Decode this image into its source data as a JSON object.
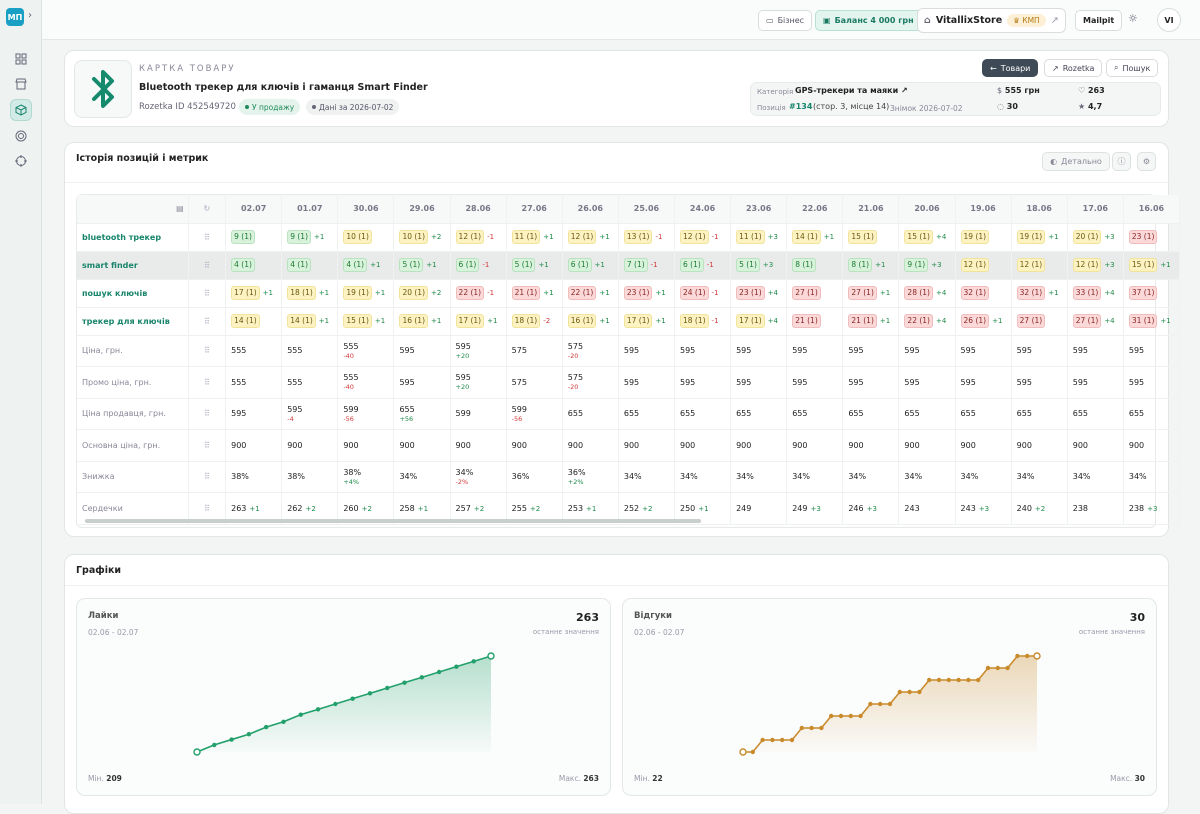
{
  "rail": {
    "logo": "МП",
    "items": [
      "grid-icon",
      "store-icon",
      "box-icon",
      "target-icon",
      "crosshair-icon"
    ]
  },
  "topbar": {
    "business": "Бізнес",
    "balance": "Баланс  4 000 грн",
    "store": "VitallixStore",
    "kmp": "КМП",
    "mailpit": "Mailpit",
    "avatar": "VI"
  },
  "product": {
    "eyebrow": "КАРТКА ТОВАРУ",
    "title": "Bluetooth трекер для ключів і гаманця Smart Finder",
    "rozetka_id": "Rozetka ID 452549720",
    "status": "У продажу",
    "data_date": "Дані за 2026-07-02",
    "btn_products": "Товари",
    "btn_rozetka": "Rozetka",
    "btn_search": "Пошук",
    "category_label": "Категорія",
    "category": "GPS-трекери та маяки",
    "position_label": "Позиція",
    "position": "#134",
    "position_detail": "(стор. 3, місце 14)",
    "snapshot": "Знімок 2026-07-02",
    "price": "555 грн",
    "likes": "263",
    "reviews": "30",
    "rating": "4,7"
  },
  "history": {
    "title": "Історія позицій і метрик",
    "detail_btn": "Детально",
    "dates": [
      "02.07",
      "01.07",
      "30.06",
      "29.06",
      "28.06",
      "27.06",
      "26.06",
      "25.06",
      "24.06",
      "23.06",
      "22.06",
      "21.06",
      "20.06",
      "19.06",
      "18.06",
      "17.06",
      "16.06"
    ],
    "keywords": [
      {
        "label": "bluetooth трекер",
        "cells": [
          [
            "9 (1)",
            "g",
            ""
          ],
          [
            "9 (1)",
            "g",
            "+1"
          ],
          [
            "10 (1)",
            "y",
            ""
          ],
          [
            "10 (1)",
            "y",
            "+2"
          ],
          [
            "12 (1)",
            "y",
            "-1"
          ],
          [
            "11 (1)",
            "y",
            "+1"
          ],
          [
            "12 (1)",
            "y",
            "+1"
          ],
          [
            "13 (1)",
            "y",
            "-1"
          ],
          [
            "12 (1)",
            "y",
            "-1"
          ],
          [
            "11 (1)",
            "y",
            "+3"
          ],
          [
            "14 (1)",
            "y",
            "+1"
          ],
          [
            "15 (1)",
            "y",
            ""
          ],
          [
            "15 (1)",
            "y",
            "+4"
          ],
          [
            "19 (1)",
            "y",
            ""
          ],
          [
            "19 (1)",
            "y",
            "+1"
          ],
          [
            "20 (1)",
            "y",
            "+3"
          ],
          [
            "23 (1)",
            "r",
            ""
          ]
        ]
      },
      {
        "label": "smart finder",
        "cells": [
          [
            "4 (1)",
            "g",
            ""
          ],
          [
            "4 (1)",
            "g",
            ""
          ],
          [
            "4 (1)",
            "g",
            "+1"
          ],
          [
            "5 (1)",
            "g",
            "+1"
          ],
          [
            "6 (1)",
            "g",
            "-1"
          ],
          [
            "5 (1)",
            "g",
            "+1"
          ],
          [
            "6 (1)",
            "g",
            "+1"
          ],
          [
            "7 (1)",
            "g",
            "-1"
          ],
          [
            "6 (1)",
            "g",
            "-1"
          ],
          [
            "5 (1)",
            "g",
            "+3"
          ],
          [
            "8 (1)",
            "g",
            ""
          ],
          [
            "8 (1)",
            "g",
            "+1"
          ],
          [
            "9 (1)",
            "g",
            "+3"
          ],
          [
            "12 (1)",
            "y",
            ""
          ],
          [
            "12 (1)",
            "y",
            ""
          ],
          [
            "12 (1)",
            "y",
            "+3"
          ],
          [
            "15 (1)",
            "y",
            "+1"
          ]
        ]
      },
      {
        "label": "пошук ключів",
        "cells": [
          [
            "17 (1)",
            "y",
            "+1"
          ],
          [
            "18 (1)",
            "y",
            "+1"
          ],
          [
            "19 (1)",
            "y",
            "+1"
          ],
          [
            "20 (1)",
            "y",
            "+2"
          ],
          [
            "22 (1)",
            "r",
            "-1"
          ],
          [
            "21 (1)",
            "r",
            "+1"
          ],
          [
            "22 (1)",
            "r",
            "+1"
          ],
          [
            "23 (1)",
            "r",
            "+1"
          ],
          [
            "24 (1)",
            "r",
            "-1"
          ],
          [
            "23 (1)",
            "r",
            "+4"
          ],
          [
            "27 (1)",
            "r",
            ""
          ],
          [
            "27 (1)",
            "r",
            "+1"
          ],
          [
            "28 (1)",
            "r",
            "+4"
          ],
          [
            "32 (1)",
            "r",
            ""
          ],
          [
            "32 (1)",
            "r",
            "+1"
          ],
          [
            "33 (1)",
            "r",
            "+4"
          ],
          [
            "37 (1)",
            "r",
            ""
          ]
        ]
      },
      {
        "label": "трекер для ключів",
        "cells": [
          [
            "14 (1)",
            "y",
            ""
          ],
          [
            "14 (1)",
            "y",
            "+1"
          ],
          [
            "15 (1)",
            "y",
            "+1"
          ],
          [
            "16 (1)",
            "y",
            "+1"
          ],
          [
            "17 (1)",
            "y",
            "+1"
          ],
          [
            "18 (1)",
            "y",
            "-2"
          ],
          [
            "16 (1)",
            "y",
            "+1"
          ],
          [
            "17 (1)",
            "y",
            "+1"
          ],
          [
            "18 (1)",
            "y",
            "-1"
          ],
          [
            "17 (1)",
            "y",
            "+4"
          ],
          [
            "21 (1)",
            "r",
            ""
          ],
          [
            "21 (1)",
            "r",
            "+1"
          ],
          [
            "22 (1)",
            "r",
            "+4"
          ],
          [
            "26 (1)",
            "r",
            "+1"
          ],
          [
            "27 (1)",
            "r",
            ""
          ],
          [
            "27 (1)",
            "r",
            "+4"
          ],
          [
            "31 (1)",
            "r",
            "+1"
          ]
        ]
      }
    ],
    "metrics": [
      {
        "label": "Ціна, грн.",
        "cells": [
          [
            "555",
            ""
          ],
          [
            "555",
            ""
          ],
          [
            "555",
            "-40"
          ],
          [
            "595",
            ""
          ],
          [
            "595",
            "+20"
          ],
          [
            "575",
            ""
          ],
          [
            "575",
            "-20"
          ],
          [
            "595",
            ""
          ],
          [
            "595",
            ""
          ],
          [
            "595",
            ""
          ],
          [
            "595",
            ""
          ],
          [
            "595",
            ""
          ],
          [
            "595",
            ""
          ],
          [
            "595",
            ""
          ],
          [
            "595",
            ""
          ],
          [
            "595",
            ""
          ],
          [
            "595",
            ""
          ]
        ]
      },
      {
        "label": "Промо ціна, грн.",
        "cells": [
          [
            "555",
            ""
          ],
          [
            "555",
            ""
          ],
          [
            "555",
            "-40"
          ],
          [
            "595",
            ""
          ],
          [
            "595",
            "+20"
          ],
          [
            "575",
            ""
          ],
          [
            "575",
            "-20"
          ],
          [
            "595",
            ""
          ],
          [
            "595",
            ""
          ],
          [
            "595",
            ""
          ],
          [
            "595",
            ""
          ],
          [
            "595",
            ""
          ],
          [
            "595",
            ""
          ],
          [
            "595",
            ""
          ],
          [
            "595",
            ""
          ],
          [
            "595",
            ""
          ],
          [
            "595",
            ""
          ]
        ]
      },
      {
        "label": "Ціна продавця, грн.",
        "cells": [
          [
            "595",
            ""
          ],
          [
            "595",
            "-4"
          ],
          [
            "599",
            "-56"
          ],
          [
            "655",
            "+56"
          ],
          [
            "599",
            ""
          ],
          [
            "599",
            "-56"
          ],
          [
            "655",
            ""
          ],
          [
            "655",
            ""
          ],
          [
            "655",
            ""
          ],
          [
            "655",
            ""
          ],
          [
            "655",
            ""
          ],
          [
            "655",
            ""
          ],
          [
            "655",
            ""
          ],
          [
            "655",
            ""
          ],
          [
            "655",
            ""
          ],
          [
            "655",
            ""
          ],
          [
            "655",
            ""
          ]
        ]
      },
      {
        "label": "Основна ціна, грн.",
        "cells": [
          [
            "900",
            ""
          ],
          [
            "900",
            ""
          ],
          [
            "900",
            ""
          ],
          [
            "900",
            ""
          ],
          [
            "900",
            ""
          ],
          [
            "900",
            ""
          ],
          [
            "900",
            ""
          ],
          [
            "900",
            ""
          ],
          [
            "900",
            ""
          ],
          [
            "900",
            ""
          ],
          [
            "900",
            ""
          ],
          [
            "900",
            ""
          ],
          [
            "900",
            ""
          ],
          [
            "900",
            ""
          ],
          [
            "900",
            ""
          ],
          [
            "900",
            ""
          ],
          [
            "900",
            ""
          ]
        ]
      },
      {
        "label": "Знижка",
        "cells": [
          [
            "38%",
            ""
          ],
          [
            "38%",
            ""
          ],
          [
            "38%",
            "+4%"
          ],
          [
            "34%",
            ""
          ],
          [
            "34%",
            "-2%"
          ],
          [
            "36%",
            ""
          ],
          [
            "36%",
            "+2%"
          ],
          [
            "34%",
            ""
          ],
          [
            "34%",
            ""
          ],
          [
            "34%",
            ""
          ],
          [
            "34%",
            ""
          ],
          [
            "34%",
            ""
          ],
          [
            "34%",
            ""
          ],
          [
            "34%",
            ""
          ],
          [
            "34%",
            ""
          ],
          [
            "34%",
            ""
          ],
          [
            "34%",
            ""
          ]
        ]
      },
      {
        "label": "Сердечки",
        "inline": true,
        "cells": [
          [
            "263",
            "+1"
          ],
          [
            "262",
            "+2"
          ],
          [
            "260",
            "+2"
          ],
          [
            "258",
            "+1"
          ],
          [
            "257",
            "+2"
          ],
          [
            "255",
            "+2"
          ],
          [
            "253",
            "+1"
          ],
          [
            "252",
            "+2"
          ],
          [
            "250",
            "+1"
          ],
          [
            "249",
            ""
          ],
          [
            "249",
            "+3"
          ],
          [
            "246",
            "+3"
          ],
          [
            "243",
            ""
          ],
          [
            "243",
            "+3"
          ],
          [
            "240",
            "+2"
          ],
          [
            "238",
            ""
          ],
          [
            "238",
            "+3"
          ]
        ]
      }
    ]
  },
  "charts": {
    "title": "Графіки",
    "sub": "останнє значення",
    "min_label": "Мін.",
    "max_label": "Макс.",
    "colors": {
      "likes": "#22a06b",
      "reviews": "#c98a2b"
    },
    "likes": {
      "title": "Лайки",
      "range": "02.06 - 02.07",
      "last": "263",
      "min": "209",
      "max": "263",
      "values": [
        209,
        213,
        216,
        219,
        223,
        226,
        230,
        233,
        236,
        239,
        242,
        245,
        248,
        251,
        254,
        257,
        260,
        263
      ]
    },
    "reviews": {
      "title": "Відгуки",
      "range": "02.06 - 02.07",
      "last": "30",
      "min": "22",
      "max": "30",
      "values": [
        22,
        22,
        23,
        23,
        23,
        23,
        24,
        24,
        24,
        25,
        25,
        25,
        25,
        26,
        26,
        26,
        27,
        27,
        27,
        28,
        28,
        28,
        28,
        28,
        28,
        29,
        29,
        29,
        30,
        30,
        30
      ]
    }
  },
  "chart_data": [
    {
      "type": "area",
      "title": "Лайки",
      "ylim": [
        209,
        263
      ],
      "x_range": "02.06 - 02.07",
      "series": [
        {
          "name": "Лайки",
          "values": [
            209,
            213,
            216,
            219,
            223,
            226,
            230,
            233,
            236,
            239,
            242,
            245,
            248,
            251,
            254,
            257,
            260,
            263
          ]
        }
      ]
    },
    {
      "type": "area",
      "title": "Відгуки",
      "ylim": [
        22,
        30
      ],
      "x_range": "02.06 - 02.07",
      "series": [
        {
          "name": "Відгуки",
          "values": [
            22,
            22,
            23,
            23,
            23,
            23,
            24,
            24,
            24,
            25,
            25,
            25,
            25,
            26,
            26,
            26,
            27,
            27,
            27,
            28,
            28,
            28,
            28,
            28,
            28,
            29,
            29,
            29,
            30,
            30,
            30
          ]
        }
      ]
    }
  ]
}
